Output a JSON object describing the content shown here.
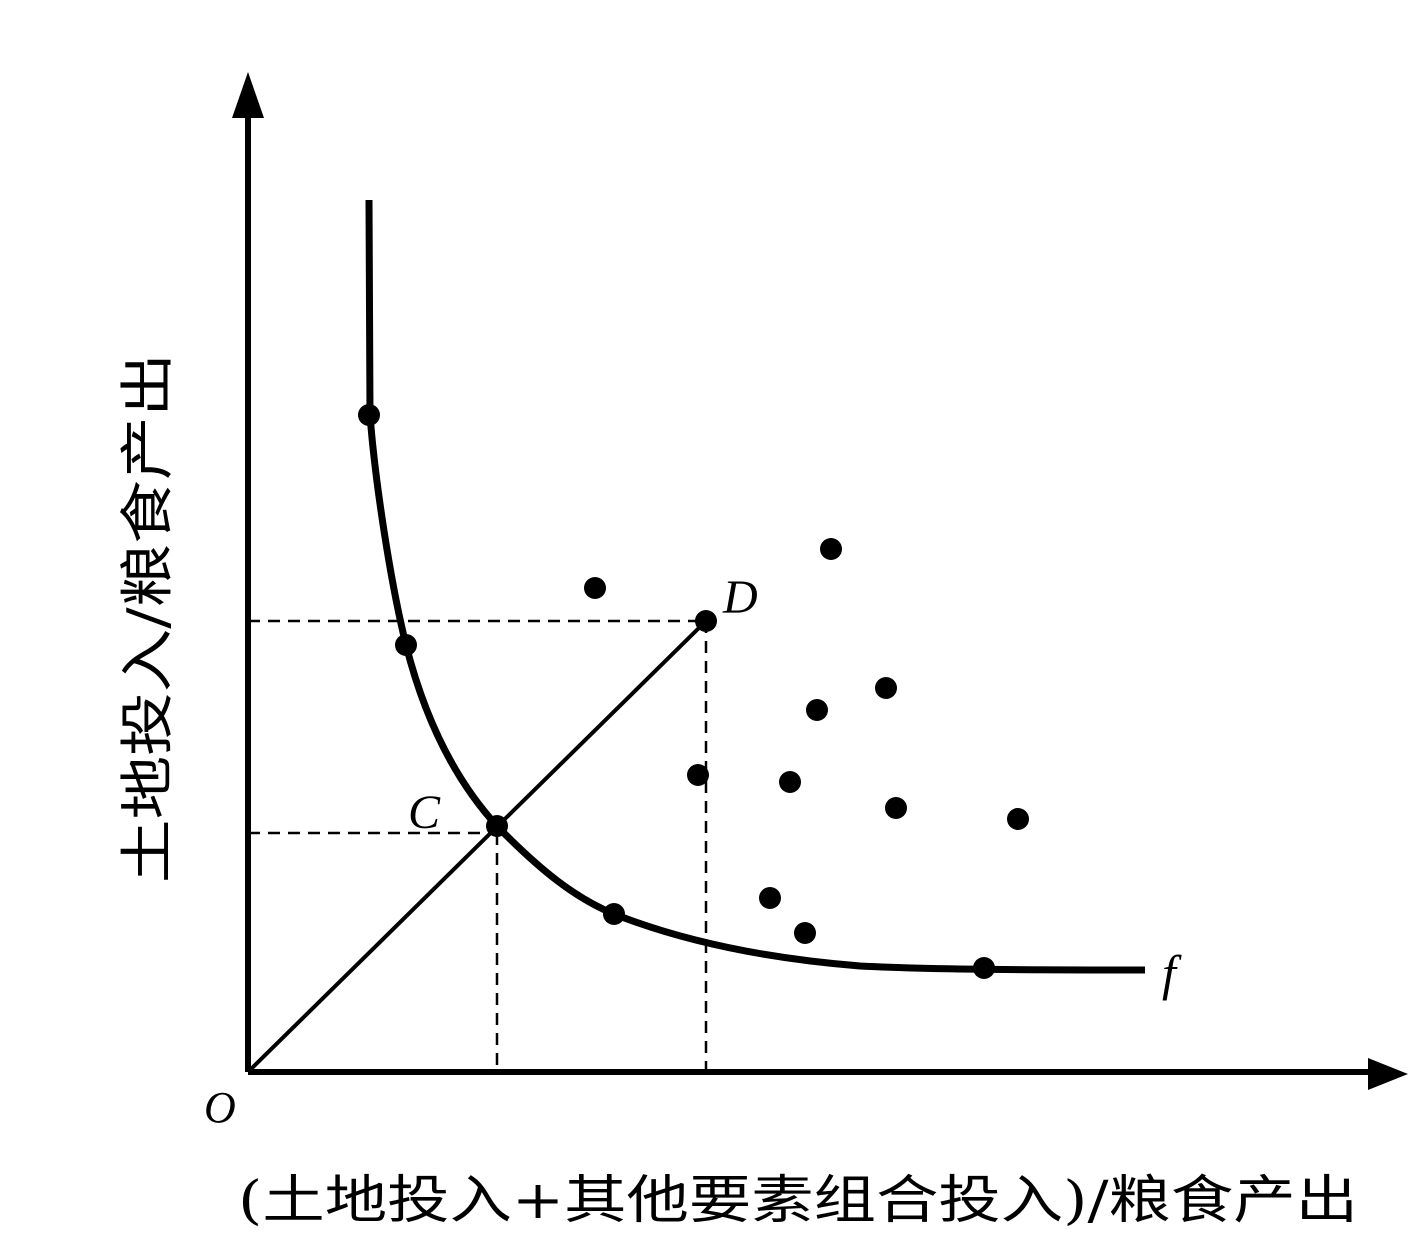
{
  "diagram": {
    "origin_label": "O",
    "x_axis_title": "(土地投入+其他要素组合投入)/粮食产出",
    "y_axis_title": "土地投入/粮食产出",
    "point_c_label": "C",
    "point_d_label": "D",
    "curve_label": "f",
    "colors": {
      "ink": "#000000",
      "background": "#ffffff"
    }
  }
}
